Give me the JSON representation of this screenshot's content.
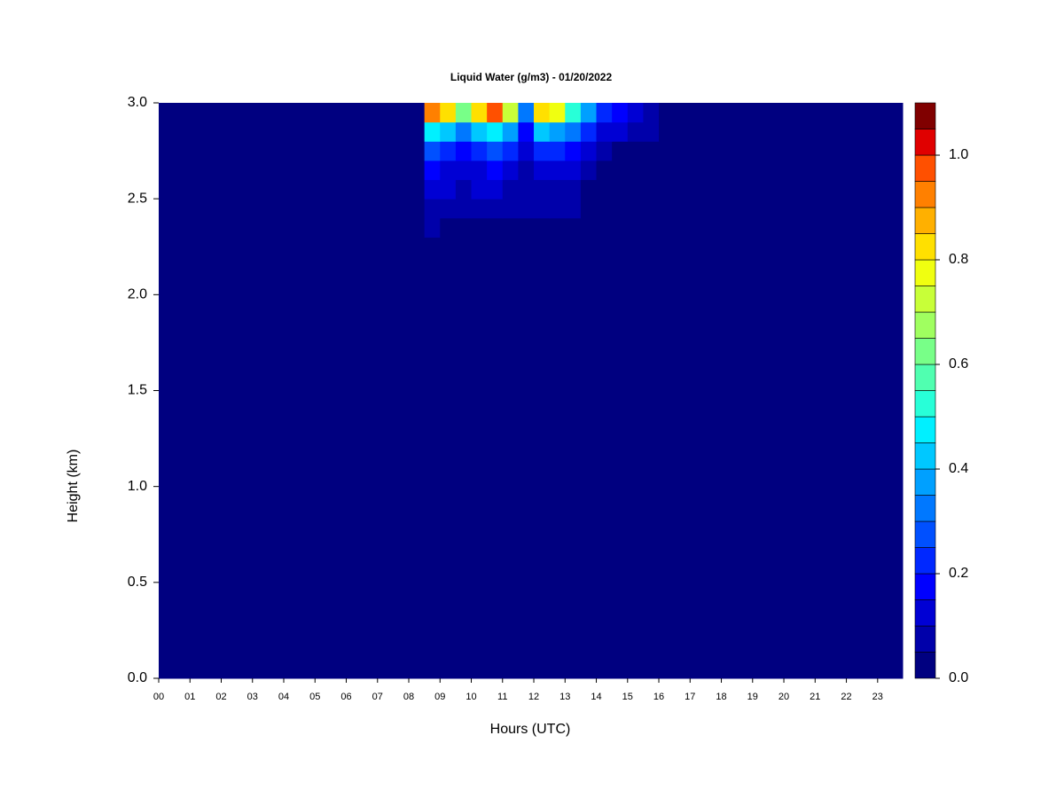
{
  "chart_data": {
    "type": "heatmap",
    "title": "Liquid Water (g/m3) - 01/20/2022",
    "x_label": "Hours (UTC)",
    "y_label": "Height (km)",
    "xlim": [
      0,
      23.8
    ],
    "ylim": [
      0,
      3.0
    ],
    "xticks": [
      {
        "value": 0,
        "label": "00"
      },
      {
        "value": 1,
        "label": "01"
      },
      {
        "value": 2,
        "label": "02"
      },
      {
        "value": 3,
        "label": "03"
      },
      {
        "value": 4,
        "label": "04"
      },
      {
        "value": 5,
        "label": "05"
      },
      {
        "value": 6,
        "label": "06"
      },
      {
        "value": 7,
        "label": "07"
      },
      {
        "value": 8,
        "label": "08"
      },
      {
        "value": 9,
        "label": "09"
      },
      {
        "value": 10,
        "label": "10"
      },
      {
        "value": 11,
        "label": "11"
      },
      {
        "value": 12,
        "label": "12"
      },
      {
        "value": 13,
        "label": "13"
      },
      {
        "value": 14,
        "label": "14"
      },
      {
        "value": 15,
        "label": "15"
      },
      {
        "value": 16,
        "label": "16"
      },
      {
        "value": 17,
        "label": "17"
      },
      {
        "value": 18,
        "label": "18"
      },
      {
        "value": 19,
        "label": "19"
      },
      {
        "value": 20,
        "label": "20"
      },
      {
        "value": 21,
        "label": "21"
      },
      {
        "value": 22,
        "label": "22"
      },
      {
        "value": 23,
        "label": "23"
      }
    ],
    "yticks": [
      {
        "value": 0,
        "label": "0.0"
      },
      {
        "value": 0.5,
        "label": "0.5"
      },
      {
        "value": 1,
        "label": "1.0"
      },
      {
        "value": 1.5,
        "label": "1.5"
      },
      {
        "value": 2,
        "label": "2.0"
      },
      {
        "value": 2.5,
        "label": "2.5"
      },
      {
        "value": 3,
        "label": "3.0"
      }
    ],
    "x_edges": [
      0,
      7.3,
      7.7,
      8.5,
      9,
      9.5,
      10,
      10.5,
      11,
      11.5,
      12,
      12.5,
      13,
      13.5,
      14,
      14.5,
      15,
      15.5,
      16,
      23.8
    ],
    "y_edges": [
      0,
      2.3,
      2.4,
      2.5,
      2.6,
      2.7,
      2.8,
      2.9,
      3.0
    ],
    "values": [
      [
        0,
        0,
        0,
        0,
        0,
        0,
        0,
        0,
        0,
        0,
        0,
        0,
        0,
        0,
        0,
        0,
        0,
        0,
        0
      ],
      [
        0,
        0,
        0,
        0.05,
        0.04,
        0.03,
        0.02,
        0.02,
        0.02,
        0.02,
        0.03,
        0.03,
        0.02,
        0,
        0,
        0,
        0,
        0,
        0
      ],
      [
        0,
        0,
        0,
        0.08,
        0.07,
        0.06,
        0.07,
        0.07,
        0.06,
        0.05,
        0.06,
        0.06,
        0.05,
        0.02,
        0,
        0,
        0,
        0,
        0
      ],
      [
        0,
        0,
        0,
        0.1,
        0.1,
        0.09,
        0.1,
        0.1,
        0.09,
        0.06,
        0.09,
        0.09,
        0.07,
        0.03,
        0,
        0,
        0,
        0,
        0
      ],
      [
        0,
        0,
        0,
        0.15,
        0.12,
        0.12,
        0.14,
        0.15,
        0.12,
        0.08,
        0.13,
        0.12,
        0.1,
        0.05,
        0.02,
        0,
        0,
        0,
        0
      ],
      [
        0,
        0,
        0,
        0.25,
        0.2,
        0.18,
        0.22,
        0.25,
        0.2,
        0.1,
        0.22,
        0.2,
        0.15,
        0.1,
        0.06,
        0.04,
        0.02,
        0,
        0
      ],
      [
        0,
        0.02,
        0,
        0.45,
        0.4,
        0.3,
        0.4,
        0.45,
        0.35,
        0.15,
        0.4,
        0.35,
        0.3,
        0.2,
        0.12,
        0.1,
        0.08,
        0.05,
        0
      ],
      [
        0,
        0.02,
        0,
        0.9,
        0.8,
        0.6,
        0.8,
        0.95,
        0.7,
        0.3,
        0.8,
        0.75,
        0.5,
        0.35,
        0.2,
        0.15,
        0.12,
        0.08,
        0
      ]
    ],
    "colorbar": {
      "levels": [
        0,
        0.05,
        0.1,
        0.15,
        0.2,
        0.25,
        0.3,
        0.35,
        0.4,
        0.45,
        0.5,
        0.55,
        0.6,
        0.65,
        0.7,
        0.75,
        0.8,
        0.85,
        0.9,
        0.95,
        1.0,
        1.05,
        1.1
      ],
      "colors": [
        "#000080",
        "#0000aa",
        "#0000d4",
        "#0000ff",
        "#0028ff",
        "#0050ff",
        "#0078ff",
        "#00a0ff",
        "#00c8ff",
        "#00f0ff",
        "#28ffd8",
        "#50ffb0",
        "#78ff88",
        "#a0ff60",
        "#c8ff38",
        "#f0ff10",
        "#ffe000",
        "#ffb000",
        "#ff8000",
        "#ff5000",
        "#e00000",
        "#800000"
      ],
      "ticks": [
        {
          "value": 0,
          "label": "0.0"
        },
        {
          "value": 0.2,
          "label": "0.2"
        },
        {
          "value": 0.4,
          "label": "0.4"
        },
        {
          "value": 0.6,
          "label": "0.6"
        },
        {
          "value": 0.8,
          "label": "0.8"
        },
        {
          "value": 1.0,
          "label": "1.0"
        }
      ]
    }
  }
}
